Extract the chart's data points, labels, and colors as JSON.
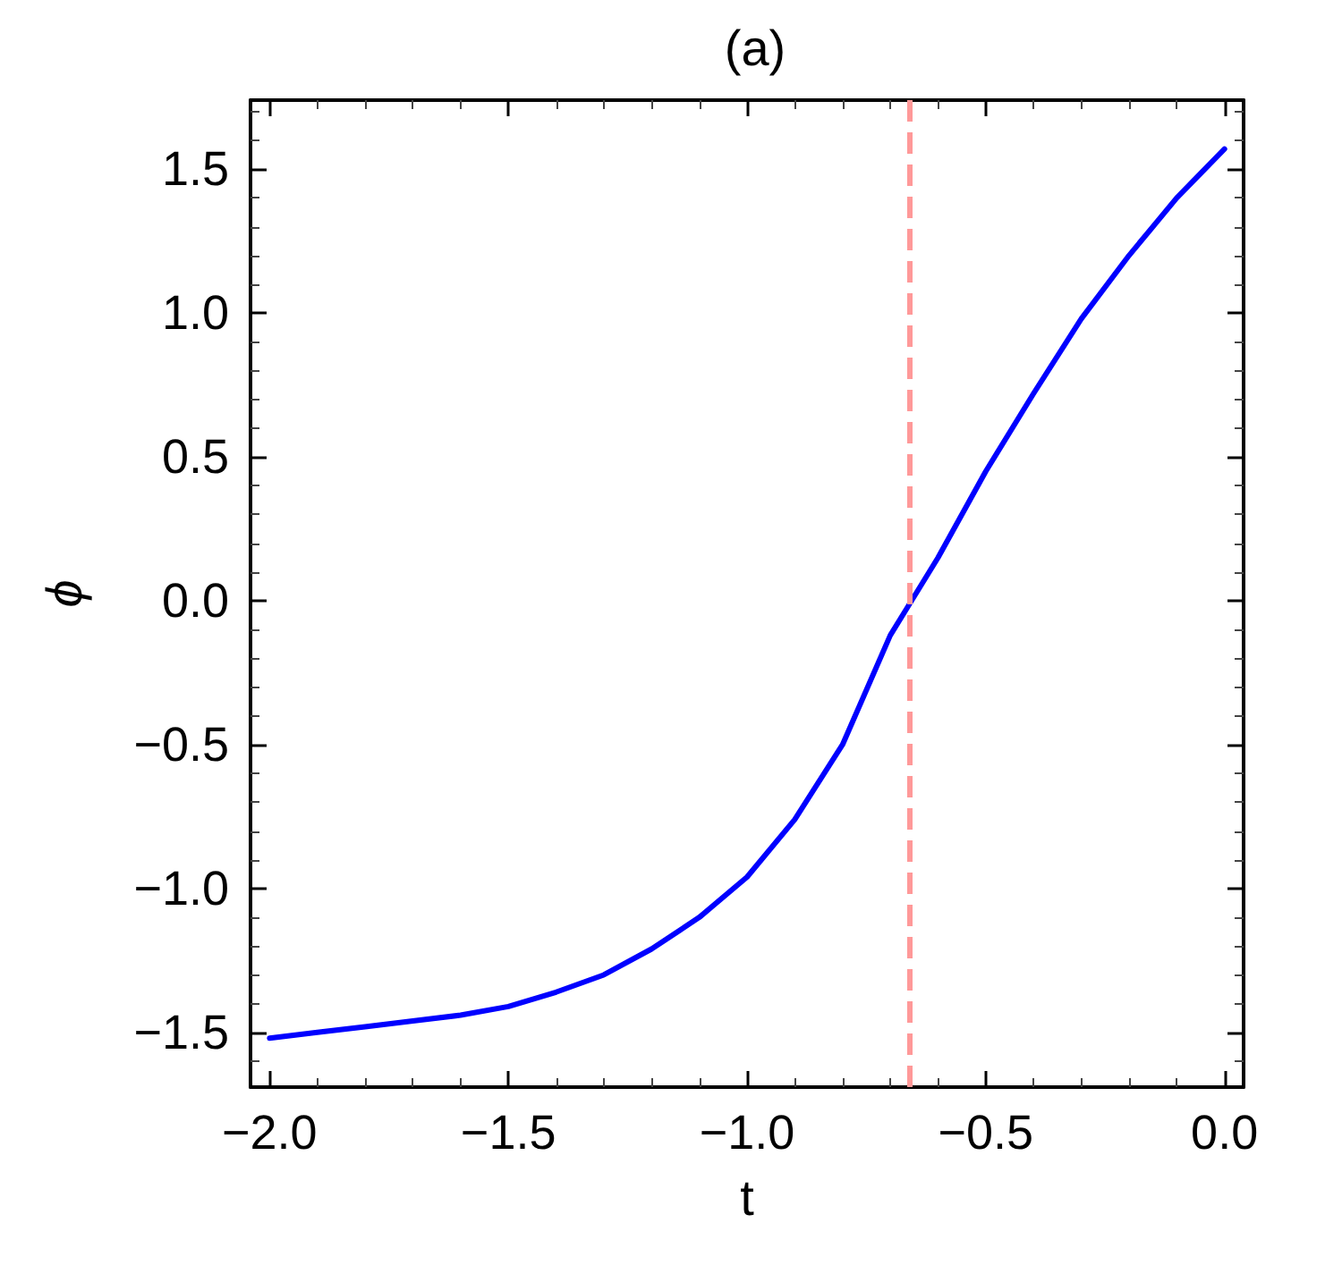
{
  "chart_data": {
    "type": "line",
    "title": "(a)",
    "xlabel": "t",
    "ylabel": "ϕ",
    "x": [
      -2,
      -1.9,
      -1.8,
      -1.7,
      -1.6,
      -1.5,
      -1.4,
      -1.3,
      -1.2,
      -1.1,
      -1.0,
      -0.9,
      -0.8,
      -0.7,
      -0.6,
      -0.5,
      -0.4,
      -0.3,
      -0.2,
      -0.1,
      0
    ],
    "series": [
      {
        "color": "#0000ff",
        "values": [
          -1.52,
          -1.5,
          -1.48,
          -1.46,
          -1.44,
          -1.41,
          -1.36,
          -1.3,
          -1.21,
          -1.1,
          -0.96,
          -0.76,
          -0.5,
          -0.12,
          0.15,
          0.45,
          0.72,
          0.98,
          1.2,
          1.4,
          1.57
        ]
      }
    ],
    "xlim": [
      -2.04,
      0.04
    ],
    "ylim": [
      -1.69,
      1.74
    ],
    "xticks": [
      {
        "value": -2,
        "label": "−2.0"
      },
      {
        "value": -1.5,
        "label": "−1.5"
      },
      {
        "value": -1,
        "label": "−1.0"
      },
      {
        "value": -0.5,
        "label": "−0.5"
      },
      {
        "value": 0,
        "label": "0.0"
      }
    ],
    "yticks": [
      {
        "value": -1.5,
        "label": "−1.5"
      },
      {
        "value": -1,
        "label": "−1.0"
      },
      {
        "value": -0.5,
        "label": "−0.5"
      },
      {
        "value": 0,
        "label": "0.0"
      },
      {
        "value": 0.5,
        "label": "0.5"
      },
      {
        "value": 1,
        "label": "1.0"
      },
      {
        "value": 1.5,
        "label": "1.5"
      }
    ],
    "ref_lines": [
      {
        "axis": "x",
        "value": -0.66,
        "color": "#ff9999",
        "line_style": "dashed"
      }
    ],
    "grid": false,
    "legend": false,
    "marker": "none",
    "line_style": "solid"
  }
}
